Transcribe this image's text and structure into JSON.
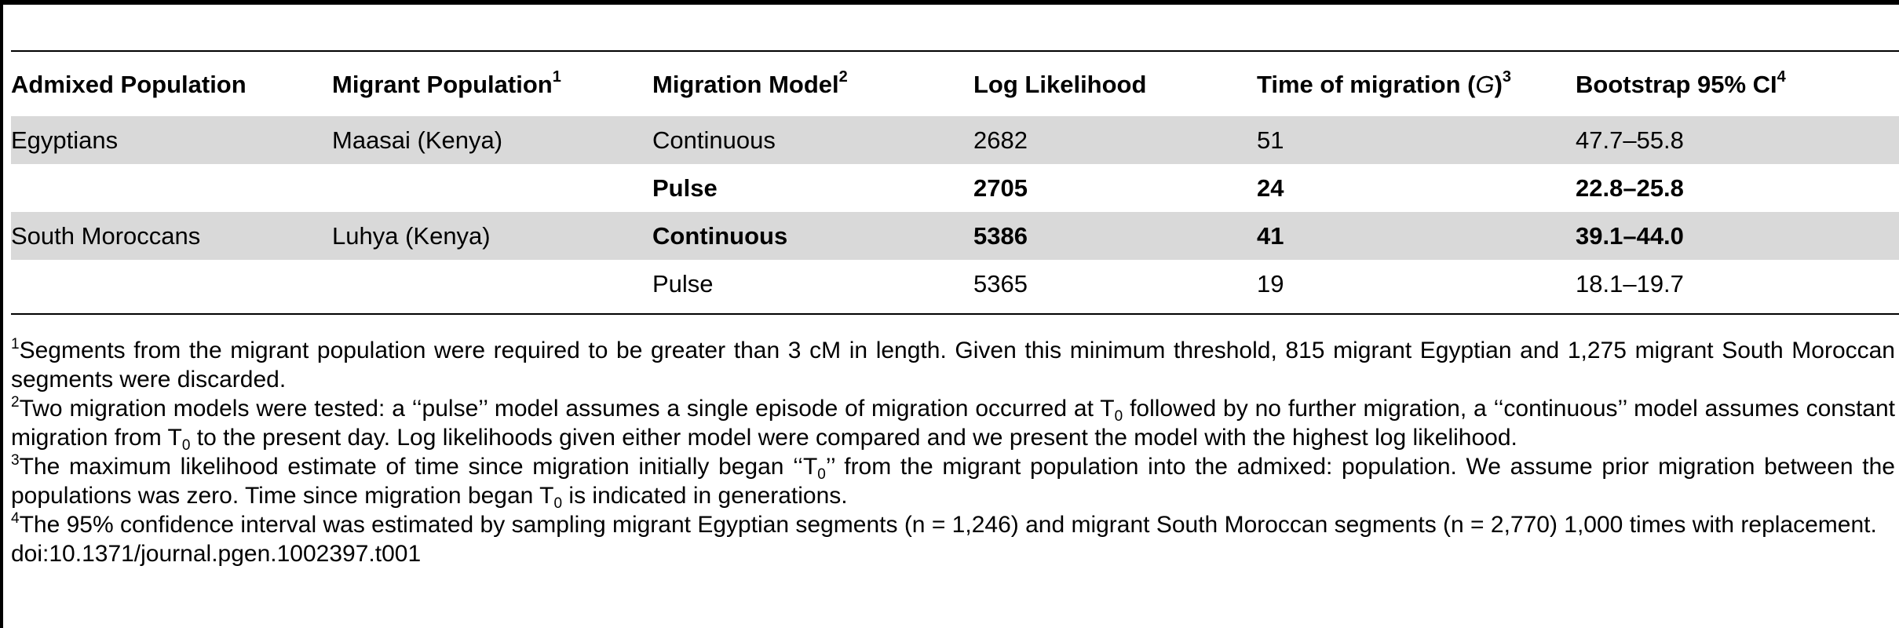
{
  "table": {
    "headers": [
      {
        "text": "Admixed Population",
        "sup": ""
      },
      {
        "text": "Migrant Population",
        "sup": "1"
      },
      {
        "text": "Migration Model",
        "sup": "2"
      },
      {
        "text": "Log Likelihood",
        "sup": ""
      },
      {
        "text": "Time of migration (",
        "italic": "G",
        "close": ")",
        "sup": "3"
      },
      {
        "text": "Bootstrap 95% CI",
        "sup": "4"
      }
    ],
    "rows": [
      {
        "shaded": true,
        "bold": false,
        "cells": [
          "Egyptians",
          "Maasai (Kenya)",
          "Continuous",
          "2682",
          "51",
          "47.7–55.8"
        ]
      },
      {
        "shaded": false,
        "bold": true,
        "cells": [
          "",
          "",
          "Pulse",
          "2705",
          "24",
          "22.8–25.8"
        ]
      },
      {
        "shaded": true,
        "bold_from": 2,
        "cells": [
          "South Moroccans",
          "Luhya (Kenya)",
          "Continuous",
          "5386",
          "41",
          "39.1–44.0"
        ]
      },
      {
        "shaded": false,
        "bold": false,
        "cells": [
          "",
          "",
          "Pulse",
          "5365",
          "19",
          "18.1–19.7"
        ]
      }
    ]
  },
  "footnotes": {
    "fn1": {
      "mark": "1",
      "text": "Segments from the migrant population were required to be greater than 3 cM in length. Given this minimum threshold, 815 migrant Egyptian and 1,275 migrant South Moroccan segments were discarded."
    },
    "fn2": {
      "mark": "2",
      "part1": "Two migration models were tested: a ‘‘pulse’’ model assumes a single episode of migration occurred at T",
      "sub1": "0",
      "part2": " followed by no further migration, a ‘‘continuous’’ model assumes constant migration from T",
      "sub2": "0",
      "part3": " to the present day. Log likelihoods given either model were compared and we present the model with the highest log likelihood."
    },
    "fn3": {
      "mark": "3",
      "part1": "The maximum likelihood estimate of time since migration initially began ‘‘T",
      "sub1": "0",
      "part2": "’’ from the migrant population into the admixed: population. We assume prior migration between the populations was zero. Time since migration began T",
      "sub2": "0",
      "part3": " is indicated in generations."
    },
    "fn4": {
      "mark": "4",
      "text": "The 95% confidence interval was estimated by sampling migrant Egyptian segments (n = 1,246) and migrant South Moroccan segments (n = 2,770) 1,000 times with replacement."
    },
    "doi": "doi:10.1371/journal.pgen.1002397.t001"
  }
}
